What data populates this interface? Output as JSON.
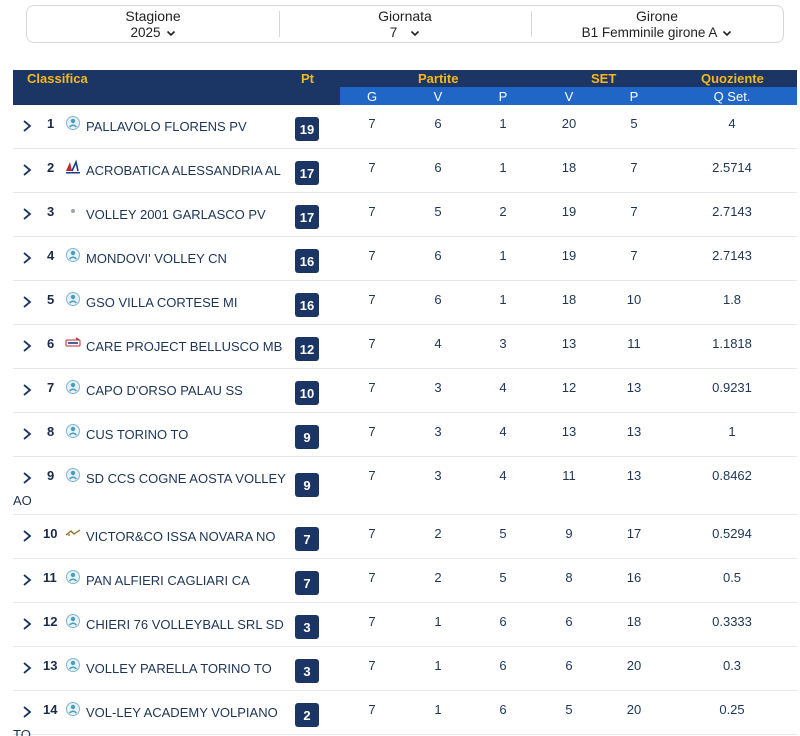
{
  "filters": {
    "stagione": {
      "label": "Stagione",
      "value": "2025"
    },
    "giornata": {
      "label": "Giornata",
      "value": "7"
    },
    "girone": {
      "label": "Girone",
      "value": "B1 Femminile girone A"
    }
  },
  "header": {
    "classifica": "Classifica",
    "pt": "Pt",
    "partite": "Partite",
    "set": "SET",
    "quoziente": "Quoziente",
    "g": "G",
    "v": "V",
    "p": "P",
    "set_v": "V",
    "set_p": "P",
    "q_set": "Q Set."
  },
  "colors": {
    "header_bg": "#1b3664",
    "subheader_bg": "#1f66c6",
    "header_text": "#f5b81f",
    "badge_bg": "#1b3664"
  },
  "rows": [
    {
      "pos": "1",
      "team": "PALLAVOLO FLORENS PV",
      "logo": "volley-logo-icon",
      "pt": "19",
      "g": "7",
      "v": "6",
      "p": "1",
      "sv": "20",
      "sp": "5",
      "q": "4"
    },
    {
      "pos": "2",
      "team": "ACROBATICA ALESSANDRIA AL",
      "logo": "acrobatica-logo-icon",
      "pt": "17",
      "g": "7",
      "v": "6",
      "p": "1",
      "sv": "18",
      "sp": "7",
      "q": "2.5714"
    },
    {
      "pos": "3",
      "team": "VOLLEY 2001 GARLASCO PV",
      "logo": "dot-logo-icon",
      "pt": "17",
      "g": "7",
      "v": "5",
      "p": "2",
      "sv": "19",
      "sp": "7",
      "q": "2.7143"
    },
    {
      "pos": "4",
      "team": "MONDOVI' VOLLEY CN",
      "logo": "volley-logo-icon",
      "pt": "16",
      "g": "7",
      "v": "6",
      "p": "1",
      "sv": "19",
      "sp": "7",
      "q": "2.7143"
    },
    {
      "pos": "5",
      "team": "GSO VILLA CORTESE MI",
      "logo": "volley-logo-icon",
      "pt": "16",
      "g": "7",
      "v": "6",
      "p": "1",
      "sv": "18",
      "sp": "10",
      "q": "1.8"
    },
    {
      "pos": "6",
      "team": "CARE PROJECT BELLUSCO MB",
      "logo": "care-logo-icon",
      "pt": "12",
      "g": "7",
      "v": "4",
      "p": "3",
      "sv": "13",
      "sp": "11",
      "q": "1.1818"
    },
    {
      "pos": "7",
      "team": "CAPO D'ORSO PALAU SS",
      "logo": "volley-logo-icon",
      "pt": "10",
      "g": "7",
      "v": "3",
      "p": "4",
      "sv": "12",
      "sp": "13",
      "q": "0.9231"
    },
    {
      "pos": "8",
      "team": "CUS TORINO TO",
      "logo": "volley-logo-icon",
      "pt": "9",
      "g": "7",
      "v": "3",
      "p": "4",
      "sv": "13",
      "sp": "13",
      "q": "1"
    },
    {
      "pos": "9",
      "team": "SD CCS COGNE AOSTA VOLLEY AO",
      "logo": "volley-logo-icon",
      "pt": "9",
      "g": "7",
      "v": "3",
      "p": "4",
      "sv": "11",
      "sp": "13",
      "q": "0.8462"
    },
    {
      "pos": "10",
      "team": "VICTOR&CO ISSA NOVARA NO",
      "logo": "victor-logo-icon",
      "pt": "7",
      "g": "7",
      "v": "2",
      "p": "5",
      "sv": "9",
      "sp": "17",
      "q": "0.5294"
    },
    {
      "pos": "11",
      "team": "PAN ALFIERI CAGLIARI CA",
      "logo": "volley-logo-icon",
      "pt": "7",
      "g": "7",
      "v": "2",
      "p": "5",
      "sv": "8",
      "sp": "16",
      "q": "0.5"
    },
    {
      "pos": "12",
      "team": "CHIERI 76 VOLLEYBALL SRL SD",
      "logo": "volley-logo-icon",
      "pt": "3",
      "g": "7",
      "v": "1",
      "p": "6",
      "sv": "6",
      "sp": "18",
      "q": "0.3333"
    },
    {
      "pos": "13",
      "team": "VOLLEY PARELLA TORINO TO",
      "logo": "volley-logo-icon",
      "pt": "3",
      "g": "7",
      "v": "1",
      "p": "6",
      "sv": "6",
      "sp": "20",
      "q": "0.3"
    },
    {
      "pos": "14",
      "team": "VOL-LEY ACADEMY VOLPIANO TO",
      "logo": "volley-logo-icon",
      "pt": "2",
      "g": "7",
      "v": "1",
      "p": "6",
      "sv": "5",
      "sp": "20",
      "q": "0.25"
    }
  ]
}
